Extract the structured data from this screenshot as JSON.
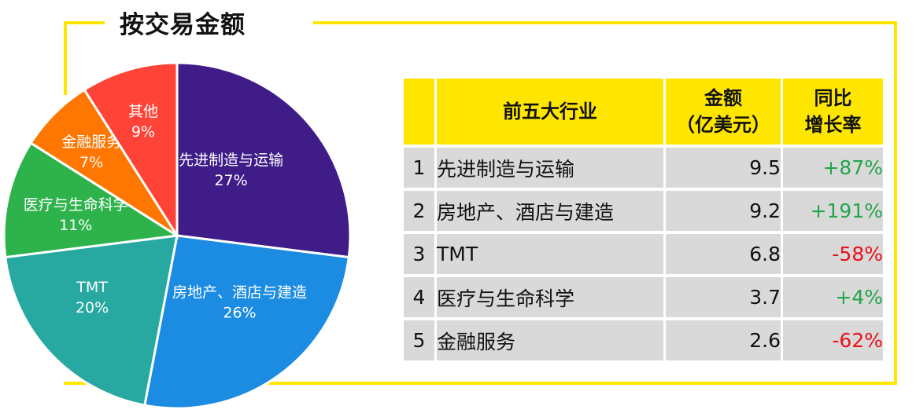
{
  "title": "按交易金额",
  "chart_data": [
    {
      "type": "pie",
      "title": "",
      "slices": [
        {
          "label": "先进制造与运输",
          "value": 27,
          "display": "27%",
          "color": "#3F1C87"
        },
        {
          "label": "房地产、酒店与建造",
          "value": 26,
          "display": "26%",
          "color": "#1C8CE3"
        },
        {
          "label": "TMT",
          "value": 20,
          "display": "20%",
          "color": "#27A8A1"
        },
        {
          "label": "医疗与生命科学",
          "value": 11,
          "display": "11%",
          "color": "#2EB34C"
        },
        {
          "label": "金融服务",
          "value": 7,
          "display": "7%",
          "color": "#FF7600"
        },
        {
          "label": "其他",
          "value": 9,
          "display": "9%",
          "color": "#FF4337"
        }
      ]
    },
    {
      "type": "table",
      "header": {
        "rank": "",
        "industry": "前五大行业",
        "amount_line1": "金额",
        "amount_line2": "（亿美元）",
        "growth_line1": "同比",
        "growth_line2": "增长率"
      },
      "rows": [
        {
          "rank": "1",
          "industry": "先进制造与运输",
          "amount": "9.5",
          "growth": "+87%",
          "growth_color": "#22A64A"
        },
        {
          "rank": "2",
          "industry": "房地产、酒店与建造",
          "amount": "9.2",
          "growth": "+191%",
          "growth_color": "#22A64A"
        },
        {
          "rank": "3",
          "industry": "TMT",
          "amount": "6.8",
          "growth": "-58%",
          "growth_color": "#E8121A"
        },
        {
          "rank": "4",
          "industry": "医疗与生命科学",
          "amount": "3.7",
          "growth": "+4%",
          "growth_color": "#22A64A"
        },
        {
          "rank": "5",
          "industry": "金融服务",
          "amount": "2.6",
          "growth": "-62%",
          "growth_color": "#E8121A"
        }
      ]
    }
  ]
}
